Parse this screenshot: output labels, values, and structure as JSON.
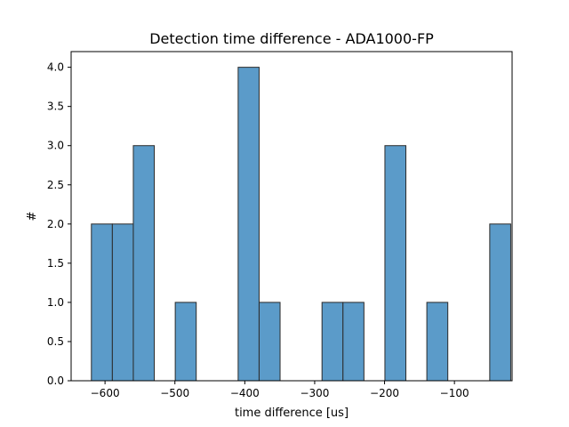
{
  "chart_data": {
    "type": "bar",
    "title": "Detection time difference - ADA1000-FP",
    "xlabel": "time difference [us]",
    "ylabel": "#",
    "xlim": [
      -648.5,
      -17.5
    ],
    "ylim": [
      0,
      4.2
    ],
    "xticks": [
      -600,
      -500,
      -400,
      -300,
      -200,
      -100
    ],
    "xtick_labels": [
      "−600",
      "−500",
      "−400",
      "−300",
      "−200",
      "−100"
    ],
    "yticks": [
      0,
      0.5,
      1,
      1.5,
      2,
      2.5,
      3,
      3.5,
      4
    ],
    "ytick_labels": [
      "0.0",
      "0.5",
      "1.0",
      "1.5",
      "2.0",
      "2.5",
      "3.0",
      "3.5",
      "4.0"
    ],
    "bin_edges": [
      -619.5,
      -589.5,
      -559.5,
      -529.5,
      -499.5,
      -469.5,
      -439.5,
      -409.5,
      -379.5,
      -349.5,
      -319.5,
      -289.5,
      -259.5,
      -229.5,
      -199.5,
      -169.5,
      -139.5,
      -109.5,
      -79.5,
      -49.5,
      -19.5
    ],
    "bin_edges_note": "",
    "counts": [
      2,
      2,
      3,
      0,
      1,
      0,
      0,
      4,
      1,
      0,
      0,
      1,
      1,
      0,
      3,
      0,
      1,
      0,
      0,
      2
    ],
    "bar_color": "#5b9bc9",
    "bar_edge_color": "#2b2b2b",
    "grid": false
  }
}
